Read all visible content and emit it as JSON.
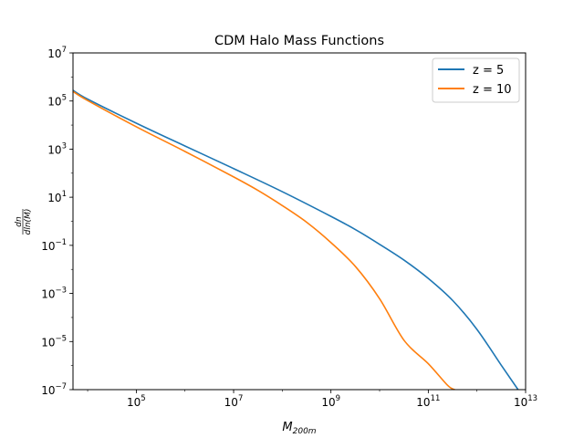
{
  "chart_data": {
    "type": "line",
    "title": "CDM Halo Mass Functions",
    "xlabel": {
      "base": "M",
      "sub": "200m"
    },
    "ylabel": {
      "num": "dn",
      "den": "dln(M)"
    },
    "xscale": "log",
    "yscale": "log",
    "xlim": [
      5000.0,
      10000000000000.0
    ],
    "ylim": [
      1e-07,
      10000000.0
    ],
    "x_ticks": [
      {
        "value": 100000.0,
        "base": "10",
        "exp": "5"
      },
      {
        "value": 10000000.0,
        "base": "10",
        "exp": "7"
      },
      {
        "value": 1000000000.0,
        "base": "10",
        "exp": "9"
      },
      {
        "value": 100000000000.0,
        "base": "10",
        "exp": "11"
      },
      {
        "value": 10000000000000.0,
        "base": "10",
        "exp": "13"
      }
    ],
    "y_ticks": [
      {
        "value": 1e-07,
        "base": "10",
        "exp": "−7"
      },
      {
        "value": 1e-05,
        "base": "10",
        "exp": "−5"
      },
      {
        "value": 0.001,
        "base": "10",
        "exp": "−3"
      },
      {
        "value": 0.1,
        "base": "10",
        "exp": "−1"
      },
      {
        "value": 10.0,
        "base": "10",
        "exp": "1"
      },
      {
        "value": 1000.0,
        "base": "10",
        "exp": "3"
      },
      {
        "value": 100000.0,
        "base": "10",
        "exp": "5"
      },
      {
        "value": 10000000.0,
        "base": "10",
        "exp": "7"
      }
    ],
    "grid": false,
    "legend_position": "top-right",
    "series": [
      {
        "name": "z = 5",
        "color": "#1f77b4",
        "points": [
          [
            5000.0,
            280000.0
          ],
          [
            10000.0,
            120000.0
          ],
          [
            100000.0,
            12000.0
          ],
          [
            1000000.0,
            1350.0
          ],
          [
            10000000.0,
            155.0
          ],
          [
            100000000.0,
            17.0
          ],
          [
            1000000000.0,
            1.6
          ],
          [
            3200000000.0,
            0.45
          ],
          [
            10000000000.0,
            0.11
          ],
          [
            32000000000.0,
            0.024
          ],
          [
            100000000000.0,
            0.0042
          ],
          [
            320000000000.0,
            0.0005
          ],
          [
            1000000000000.0,
            3.2e-05
          ],
          [
            3200000000000.0,
            1e-06
          ],
          [
            7000000000000.0,
            1e-07
          ]
        ]
      },
      {
        "name": "z = 10",
        "color": "#ff7f0e",
        "points": [
          [
            5000.0,
            250000.0
          ],
          [
            10000.0,
            105000.0
          ],
          [
            100000.0,
            8500.0
          ],
          [
            1000000.0,
            800.0
          ],
          [
            10000000.0,
            70.0
          ],
          [
            32000000.0,
            19.0
          ],
          [
            100000000.0,
            4.5
          ],
          [
            320000000.0,
            0.9
          ],
          [
            1000000000.0,
            0.13
          ],
          [
            3200000000.0,
            0.013
          ],
          [
            10000000000.0,
            0.0006
          ],
          [
            32000000000.0,
            1.1e-05
          ],
          [
            100000000000.0,
            1.2e-06
          ],
          [
            250000000000.0,
            1.5e-07
          ],
          [
            350000000000.0,
            1e-07
          ]
        ]
      }
    ]
  }
}
